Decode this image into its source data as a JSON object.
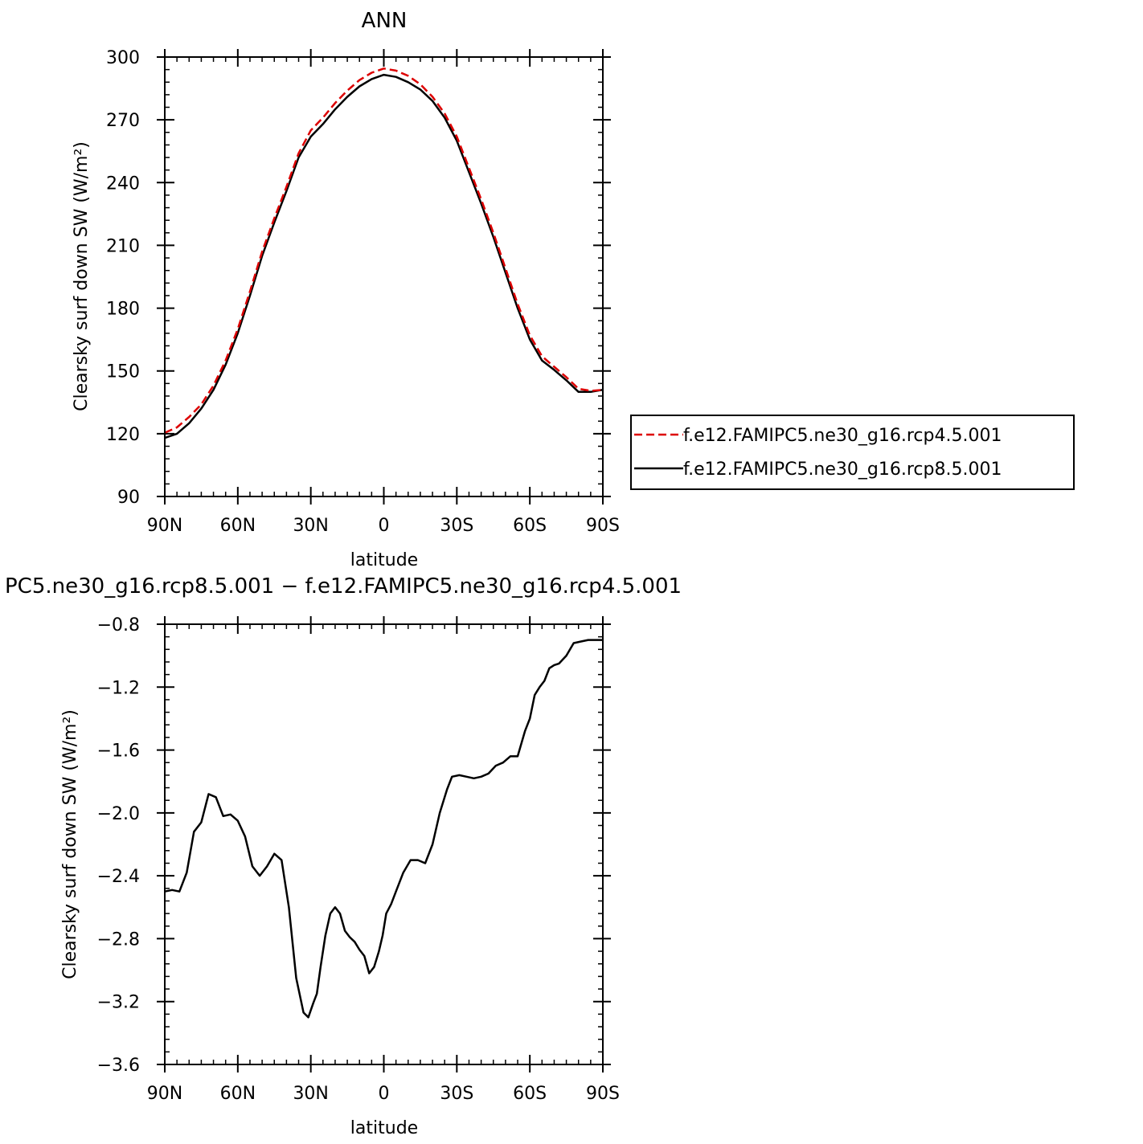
{
  "chart_data": [
    {
      "type": "line",
      "title": "ANN",
      "xlabel": "latitude",
      "ylabel": "Clearsky surf down SW (W/m²)",
      "xlim": [
        90,
        -90
      ],
      "ylim": [
        90,
        300
      ],
      "xticks": [
        90,
        60,
        30,
        0,
        -30,
        -60,
        -90
      ],
      "xtick_labels": [
        "90N",
        "60N",
        "30N",
        "0",
        "30S",
        "60S",
        "90S"
      ],
      "yticks": [
        90,
        120,
        150,
        180,
        210,
        240,
        270,
        300
      ],
      "ytick_labels": [
        "90",
        "120",
        "150",
        "180",
        "210",
        "240",
        "270",
        "300"
      ],
      "grid": false,
      "legend_position": "outside-right",
      "series": [
        {
          "name": "f.e12.FAMIPC5.ne30_g16.rcp4.5.001",
          "color": "#dd0000",
          "dash": "dashed",
          "x": [
            90,
            85,
            80,
            75,
            70,
            65,
            60,
            55,
            50,
            45,
            40,
            35,
            30,
            25,
            20,
            15,
            10,
            5,
            0,
            -5,
            -10,
            -15,
            -20,
            -25,
            -30,
            -35,
            -40,
            -45,
            -50,
            -55,
            -60,
            -65,
            -70,
            -75,
            -80,
            -85,
            -90
          ],
          "y": [
            120.5,
            123,
            128,
            134,
            143,
            155,
            170,
            188,
            207,
            223,
            238,
            254,
            265,
            271,
            278,
            284,
            289,
            292.5,
            294.5,
            293.5,
            291,
            287,
            281,
            273,
            262,
            247,
            232,
            216,
            199,
            182,
            167,
            157,
            152,
            147,
            141.5,
            140.5,
            141
          ]
        },
        {
          "name": "f.e12.FAMIPC5.ne30_g16.rcp8.5.001",
          "color": "#000000",
          "dash": "solid",
          "x": [
            90,
            85,
            80,
            75,
            70,
            65,
            60,
            55,
            50,
            45,
            40,
            35,
            30,
            25,
            20,
            15,
            10,
            5,
            0,
            -5,
            -10,
            -15,
            -20,
            -25,
            -30,
            -35,
            -40,
            -45,
            -50,
            -55,
            -60,
            -65,
            -70,
            -75,
            -80,
            -85,
            -90
          ],
          "y": [
            118,
            120,
            125,
            132,
            141,
            153,
            168,
            186,
            205,
            221,
            236,
            252,
            262,
            268,
            275,
            281,
            286,
            289.5,
            291.5,
            290.5,
            288,
            284.5,
            279,
            271,
            260,
            245,
            230,
            214,
            197,
            180,
            165,
            155,
            150.5,
            145.5,
            140,
            140,
            141
          ]
        }
      ]
    },
    {
      "type": "line",
      "title": "PC5.ne30_g16.rcp8.5.001 − f.e12.FAMIPC5.ne30_g16.rcp4.5.001",
      "xlabel": "latitude",
      "ylabel": "Clearsky surf down SW (W/m²)",
      "xlim": [
        90,
        -90
      ],
      "ylim": [
        -3.6,
        -0.8
      ],
      "xticks": [
        90,
        60,
        30,
        0,
        -30,
        -60,
        -90
      ],
      "xtick_labels": [
        "90N",
        "60N",
        "30N",
        "0",
        "30S",
        "60S",
        "90S"
      ],
      "yticks": [
        -0.8,
        -1.2,
        -1.6,
        -2.0,
        -2.4,
        -2.8,
        -3.2,
        -3.6
      ],
      "ytick_labels": [
        "−0.8",
        "−1.2",
        "−1.6",
        "−2.0",
        "−2.4",
        "−2.8",
        "−3.2",
        "−3.6"
      ],
      "grid": false,
      "series": [
        {
          "color": "#000000",
          "dash": "solid",
          "x": [
            90,
            87,
            84,
            81,
            78,
            75,
            72,
            69,
            66,
            63,
            60,
            57,
            54,
            51,
            48,
            45,
            42,
            39,
            36,
            33,
            31,
            29,
            27.5,
            26,
            24,
            22,
            20,
            18,
            16,
            14,
            12,
            10,
            8,
            6,
            4,
            2,
            0.5,
            -1,
            -3,
            -5,
            -8,
            -11,
            -14,
            -17,
            -20,
            -23,
            -26,
            -28,
            -31,
            -34,
            -37,
            -40,
            -43,
            -46,
            -49,
            -52,
            -55,
            -58,
            -60,
            -62,
            -64,
            -66,
            -68,
            -70,
            -72,
            -75,
            -78,
            -81,
            -84,
            -87,
            -90
          ],
          "y": [
            -2.5,
            -2.49,
            -2.5,
            -2.38,
            -2.12,
            -2.06,
            -1.88,
            -1.9,
            -2.02,
            -2.01,
            -2.05,
            -2.15,
            -2.34,
            -2.4,
            -2.34,
            -2.26,
            -2.3,
            -2.6,
            -3.05,
            -3.27,
            -3.3,
            -3.21,
            -3.15,
            -2.98,
            -2.78,
            -2.64,
            -2.6,
            -2.64,
            -2.75,
            -2.79,
            -2.82,
            -2.87,
            -2.91,
            -3.02,
            -2.98,
            -2.88,
            -2.78,
            -2.64,
            -2.58,
            -2.5,
            -2.38,
            -2.3,
            -2.3,
            -2.32,
            -2.2,
            -2.0,
            -1.85,
            -1.77,
            -1.76,
            -1.77,
            -1.78,
            -1.77,
            -1.75,
            -1.7,
            -1.68,
            -1.64,
            -1.64,
            -1.48,
            -1.4,
            -1.25,
            -1.2,
            -1.16,
            -1.08,
            -1.06,
            -1.05,
            -1.0,
            -0.92,
            -0.91,
            -0.9,
            -0.9,
            -0.9
          ]
        }
      ]
    }
  ]
}
